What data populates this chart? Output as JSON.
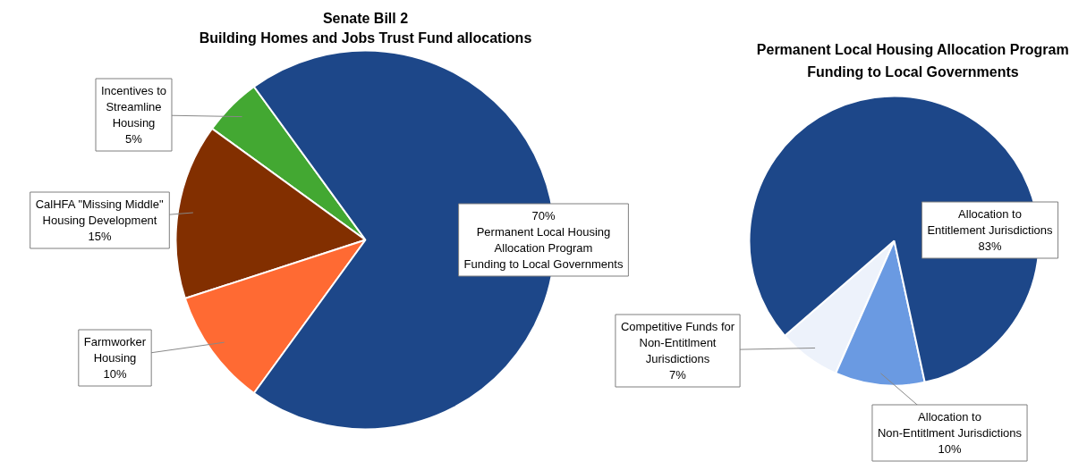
{
  "chart_data": [
    {
      "type": "pie",
      "title": "Senate Bill 2",
      "subtitle": "Building Homes and Jobs Trust Fund allocations",
      "categories": [
        "Incentives to Streamline Housing",
        "CalHFA \"Missing Middle\" Housing Development",
        "Farmworker Housing",
        "Permanent Local Housing Allocation Program Funding to Local Governments"
      ],
      "values": [
        5,
        15,
        10,
        70
      ],
      "colors": [
        "#43a832",
        "#822f00",
        "#ff6a33",
        "#1d4789"
      ],
      "value_labels": [
        "5%",
        "15%",
        "10%",
        "70%"
      ]
    },
    {
      "type": "pie",
      "title": "Permanent Local Housing Allocation Program",
      "subtitle": "Funding to Local Governments",
      "categories": [
        "Competitive Funds for Non-Entitlment Jurisdictions",
        "Allocation to Non-Entitlment Jurisdictions",
        "Allocation to Entitlement Jurisdictions"
      ],
      "values": [
        7,
        10,
        83
      ],
      "colors": [
        "#edf2fb",
        "#6a9ae2",
        "#1d4789"
      ],
      "value_labels": [
        "7%",
        "10%",
        "83%"
      ]
    }
  ]
}
